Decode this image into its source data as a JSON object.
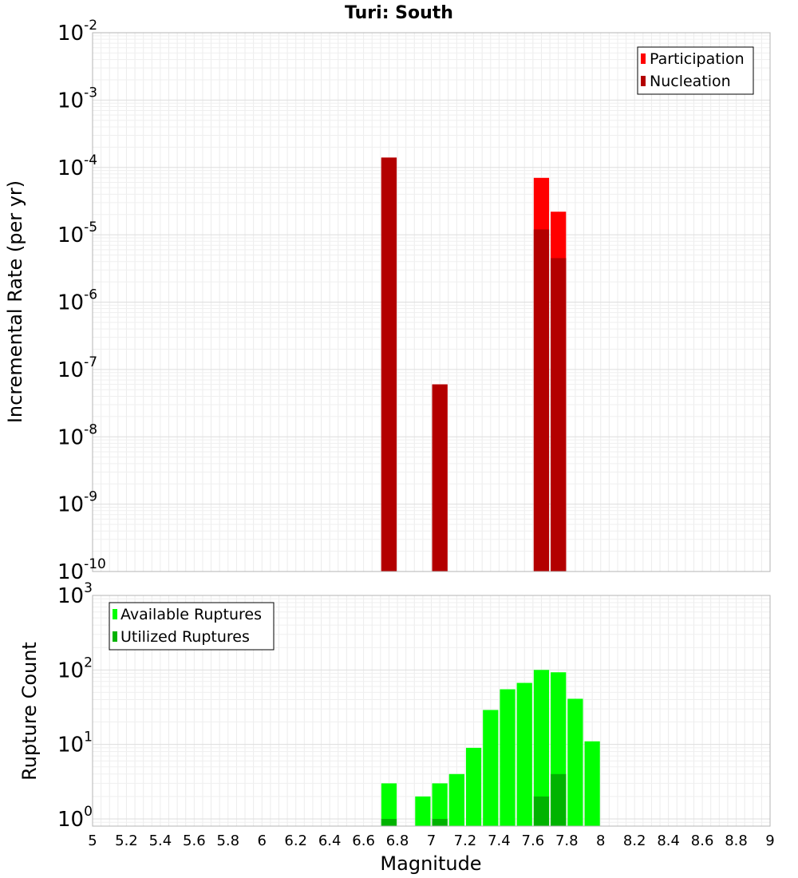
{
  "chart_data": [
    {
      "type": "bar",
      "title": "Turi: South",
      "xlabel": "",
      "ylabel": "Incremental Rate (per yr)",
      "yscale": "log",
      "ylim": [
        1e-10,
        0.01
      ],
      "xlim": [
        5,
        9
      ],
      "bar_width": 0.1,
      "grid": true,
      "legend": "top-right",
      "y_ticks": [
        {
          "base": "10",
          "exp": "-10",
          "value": 1e-10
        },
        {
          "base": "10",
          "exp": "-9",
          "value": 1e-09
        },
        {
          "base": "10",
          "exp": "-8",
          "value": 1e-08
        },
        {
          "base": "10",
          "exp": "-7",
          "value": 1e-07
        },
        {
          "base": "10",
          "exp": "-6",
          "value": 1e-06
        },
        {
          "base": "10",
          "exp": "-5",
          "value": 1e-05
        },
        {
          "base": "10",
          "exp": "-4",
          "value": 0.0001
        },
        {
          "base": "10",
          "exp": "-3",
          "value": 0.001
        },
        {
          "base": "10",
          "exp": "-2",
          "value": 0.01
        }
      ],
      "series": [
        {
          "name": "Participation",
          "color": "#ff0000",
          "x": [
            6.75,
            7.05,
            7.65,
            7.75
          ],
          "values": [
            0.00014,
            6e-08,
            7e-05,
            2.2e-05
          ]
        },
        {
          "name": "Nucleation",
          "color": "#b30000",
          "x": [
            6.75,
            7.05,
            7.65,
            7.75
          ],
          "values": [
            0.00014,
            6e-08,
            1.2e-05,
            4.5e-06
          ]
        }
      ]
    },
    {
      "type": "bar",
      "title": "",
      "xlabel": "Magnitude",
      "ylabel": "Rupture Count",
      "yscale": "log",
      "ylim": [
        0.8,
        1000
      ],
      "xlim": [
        5,
        9
      ],
      "bar_width": 0.1,
      "grid": true,
      "legend": "top-left",
      "x_ticks": [
        "5",
        "5.2",
        "5.4",
        "5.6",
        "5.8",
        "6",
        "6.2",
        "6.4",
        "6.6",
        "6.8",
        "7",
        "7.2",
        "7.4",
        "7.6",
        "7.8",
        "8",
        "8.2",
        "8.4",
        "8.6",
        "8.8",
        "9"
      ],
      "y_ticks": [
        {
          "base": "10",
          "exp": "0",
          "value": 1
        },
        {
          "base": "10",
          "exp": "1",
          "value": 10
        },
        {
          "base": "10",
          "exp": "2",
          "value": 100
        },
        {
          "base": "10",
          "exp": "3",
          "value": 1000
        }
      ],
      "series": [
        {
          "name": "Available Ruptures",
          "color": "#00ff00",
          "x": [
            6.75,
            6.95,
            7.05,
            7.15,
            7.25,
            7.35,
            7.45,
            7.55,
            7.65,
            7.75,
            7.85,
            7.95
          ],
          "values": [
            3,
            2,
            3,
            4,
            9,
            29,
            55,
            67,
            100,
            93,
            41,
            11
          ]
        },
        {
          "name": "Utilized Ruptures",
          "color": "#00b300",
          "x": [
            6.75,
            7.05,
            7.65,
            7.75
          ],
          "values": [
            1,
            1,
            2,
            4
          ]
        }
      ]
    }
  ]
}
